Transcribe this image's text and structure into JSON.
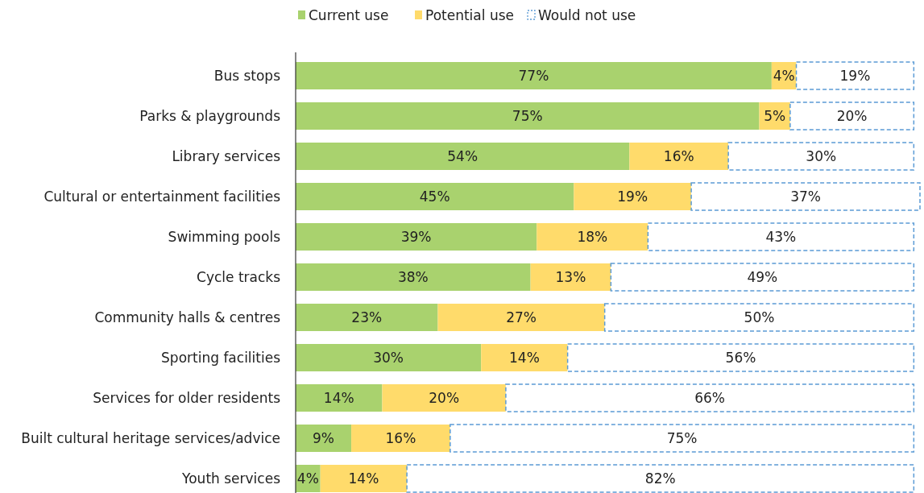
{
  "chart_data": {
    "type": "bar",
    "orientation": "horizontal",
    "stacked": true,
    "categories": [
      "Bus stops",
      "Parks & playgrounds",
      "Library services",
      "Cultural or entertainment facilities",
      "Swimming pools",
      "Cycle tracks",
      "Community halls & centres",
      "Sporting facilities",
      "Services for older residents",
      "Built cultural heritage services/advice",
      "Youth services"
    ],
    "series": [
      {
        "name": "Current use",
        "color": "#a9d26e",
        "values": [
          77,
          75,
          54,
          45,
          39,
          38,
          23,
          30,
          14,
          9,
          4
        ],
        "value_labels": [
          "77%",
          "75%",
          "54%",
          "45%",
          "39%",
          "38%",
          "23%",
          "30%",
          "14%",
          "9%",
          "4%"
        ]
      },
      {
        "name": "Potential use",
        "color": "#ffdb6b",
        "values": [
          4,
          5,
          16,
          19,
          18,
          13,
          27,
          14,
          20,
          16,
          14
        ],
        "value_labels": [
          "4%",
          "5%",
          "16%",
          "19%",
          "18%",
          "13%",
          "27%",
          "14%",
          "20%",
          "16%",
          "14%"
        ]
      },
      {
        "name": "Would not use",
        "color": "#5b9bd5",
        "line_style": "dashed",
        "values": [
          19,
          20,
          30,
          37,
          43,
          49,
          50,
          56,
          66,
          75,
          82
        ],
        "value_labels": [
          "19%",
          "20%",
          "30%",
          "37%",
          "43%",
          "49%",
          "50%",
          "56%",
          "66%",
          "75%",
          "82%"
        ]
      }
    ],
    "xlim": [
      0,
      101
    ],
    "tick_labels": "y",
    "legend": "top"
  }
}
